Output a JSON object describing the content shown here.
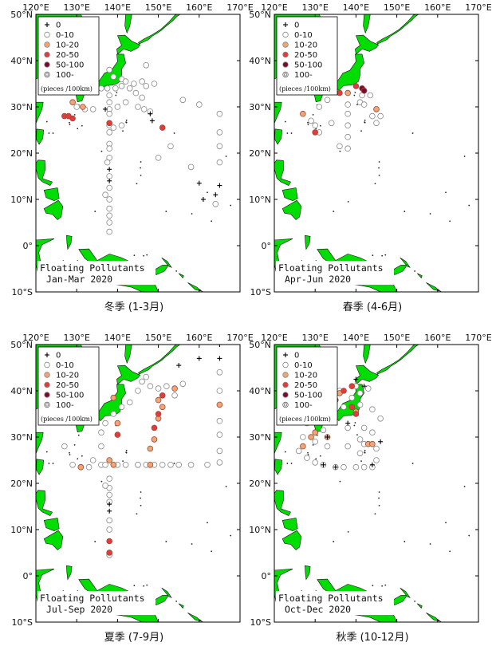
{
  "axes": {
    "lon_ticks": [
      {
        "value": 120,
        "label": "120°E"
      },
      {
        "value": 130,
        "label": "130°E"
      },
      {
        "value": 140,
        "label": "140°E"
      },
      {
        "value": 150,
        "label": "150°E"
      },
      {
        "value": 160,
        "label": "160°E"
      },
      {
        "value": 170,
        "label": "170°E"
      }
    ],
    "lat_ticks": [
      {
        "value": 50,
        "label": "50°N"
      },
      {
        "value": 40,
        "label": "40°N"
      },
      {
        "value": 30,
        "label": "30°N"
      },
      {
        "value": 20,
        "label": "20°N"
      },
      {
        "value": 10,
        "label": "10°N"
      },
      {
        "value": 0,
        "label": "0°"
      },
      {
        "value": -10,
        "label": "10°S"
      }
    ],
    "lon_range": [
      120,
      170
    ],
    "lat_range": [
      -10,
      50
    ]
  },
  "legend": {
    "items": [
      {
        "label": "0",
        "symbol": "plus"
      },
      {
        "label": "0-10",
        "color": "#ffffff"
      },
      {
        "label": "10-20",
        "color": "#f2a574"
      },
      {
        "label": "20-50",
        "color": "#e33b3b"
      },
      {
        "label": "50-100",
        "color": "#7a0a2e"
      },
      {
        "label": "100-",
        "symbol": "double"
      }
    ],
    "unit": "(pieces /100km)"
  },
  "colors": {
    "land": "#00dd00",
    "plus": "#000000"
  },
  "panels": [
    {
      "id": "winter",
      "title_line1": "Floating Pollutants",
      "title_line2": "Jan-Mar 2020",
      "caption": "冬季 (1-3月)",
      "points": [
        [
          138,
          38,
          1
        ],
        [
          139,
          36.5,
          1
        ],
        [
          141,
          36,
          1
        ],
        [
          142,
          35.5,
          1
        ],
        [
          144,
          35,
          1
        ],
        [
          146,
          35.5,
          1
        ],
        [
          147,
          34.5,
          1
        ],
        [
          149,
          35,
          1
        ],
        [
          147,
          39,
          1
        ],
        [
          132,
          33.5,
          1
        ],
        [
          134,
          34,
          1
        ],
        [
          136,
          34,
          1
        ],
        [
          137.5,
          34,
          1
        ],
        [
          139.5,
          34,
          1
        ],
        [
          141,
          34.5,
          1
        ],
        [
          143,
          34,
          1
        ],
        [
          144.5,
          33,
          1
        ],
        [
          146,
          32,
          1
        ],
        [
          138,
          32.5,
          1
        ],
        [
          138,
          31,
          1
        ],
        [
          138,
          29.5,
          1
        ],
        [
          138,
          28.5,
          1
        ],
        [
          138,
          26,
          1
        ],
        [
          138,
          24.5,
          1
        ],
        [
          138,
          22,
          1
        ],
        [
          138,
          21,
          1
        ],
        [
          138,
          19,
          1
        ],
        [
          137.5,
          18,
          1
        ],
        [
          138,
          15,
          1
        ],
        [
          138,
          12.5,
          1
        ],
        [
          138,
          10,
          1
        ],
        [
          138,
          8,
          1
        ],
        [
          138,
          6.5,
          1
        ],
        [
          138,
          5,
          1
        ],
        [
          138,
          3,
          1
        ],
        [
          137,
          11,
          1
        ],
        [
          130,
          30,
          1
        ],
        [
          132,
          29.5,
          1
        ],
        [
          134,
          29.5,
          1
        ],
        [
          140,
          30,
          1
        ],
        [
          142,
          31,
          1
        ],
        [
          145,
          30,
          1
        ],
        [
          146.5,
          29.5,
          1
        ],
        [
          148,
          29,
          1
        ],
        [
          141,
          26,
          1
        ],
        [
          139,
          25.5,
          1
        ],
        [
          150,
          19,
          1
        ],
        [
          153,
          21.5,
          1
        ],
        [
          156,
          31.5,
          1
        ],
        [
          158,
          17,
          1
        ],
        [
          160,
          30.5,
          1
        ],
        [
          165,
          28.5,
          1
        ],
        [
          165,
          24.5,
          1
        ],
        [
          165,
          21.5,
          1
        ],
        [
          165,
          18,
          1
        ],
        [
          164,
          9,
          1
        ],
        [
          129,
          31,
          2
        ],
        [
          127,
          28,
          3
        ],
        [
          129,
          27.5,
          3
        ],
        [
          128,
          28,
          3
        ],
        [
          138,
          26.5,
          3
        ],
        [
          151,
          25.5,
          3
        ],
        [
          131.5,
          30,
          2
        ],
        [
          137,
          29.5,
          0
        ],
        [
          148,
          28.5,
          0
        ],
        [
          138,
          16.5,
          0
        ],
        [
          138,
          14,
          0
        ],
        [
          160,
          13.5,
          0
        ],
        [
          161,
          10,
          0
        ],
        [
          164,
          11,
          0
        ],
        [
          165,
          13,
          0
        ],
        [
          148.5,
          27,
          0
        ]
      ]
    },
    {
      "id": "spring",
      "title_line1": "Floating Pollutants",
      "title_line2": "Apr-Jun 2020",
      "caption": "春季 (4-6月)",
      "points": [
        [
          127,
          28.5,
          2
        ],
        [
          131,
          30,
          1
        ],
        [
          130,
          26,
          1
        ],
        [
          129,
          27,
          1
        ],
        [
          133,
          31.5,
          1
        ],
        [
          138,
          30.5,
          1
        ],
        [
          138,
          28.5,
          1
        ],
        [
          138,
          26,
          1
        ],
        [
          138,
          23.5,
          1
        ],
        [
          138,
          21,
          1
        ],
        [
          136,
          21.5,
          1
        ],
        [
          141,
          31,
          1
        ],
        [
          143.5,
          32.5,
          1
        ],
        [
          141.5,
          32.5,
          1
        ],
        [
          142,
          30.5,
          1
        ],
        [
          145,
          26.5,
          1
        ],
        [
          146,
          28,
          1
        ],
        [
          144,
          28,
          1
        ],
        [
          131,
          24.5,
          1
        ],
        [
          134,
          26.5,
          1
        ],
        [
          130,
          24.5,
          3
        ],
        [
          138,
          33,
          2
        ],
        [
          145,
          29.5,
          2
        ],
        [
          136,
          33,
          3
        ],
        [
          140,
          34.5,
          3
        ],
        [
          141.5,
          34,
          4
        ],
        [
          142,
          33.5,
          4
        ]
      ]
    },
    {
      "id": "summer",
      "title_line1": "Floating Pollutants",
      "title_line2": "Jul-Sep 2020",
      "caption": "夏季 (7-9月)",
      "points": [
        [
          127,
          28,
          1
        ],
        [
          129,
          24,
          1
        ],
        [
          131,
          23.5,
          1
        ],
        [
          133,
          23.5,
          1
        ],
        [
          134,
          25,
          1
        ],
        [
          136,
          24,
          1
        ],
        [
          137,
          24,
          1
        ],
        [
          140,
          24,
          1
        ],
        [
          142,
          24,
          1
        ],
        [
          145,
          24,
          1
        ],
        [
          147,
          24,
          1
        ],
        [
          149,
          24,
          1
        ],
        [
          151,
          24,
          1
        ],
        [
          153,
          24,
          1
        ],
        [
          155,
          24,
          1
        ],
        [
          158,
          24,
          1
        ],
        [
          162,
          24,
          1
        ],
        [
          165,
          24.5,
          1
        ],
        [
          138,
          21,
          1
        ],
        [
          138,
          19,
          1
        ],
        [
          138,
          17.5,
          1
        ],
        [
          138,
          16,
          1
        ],
        [
          138,
          12,
          1
        ],
        [
          138,
          10,
          1
        ],
        [
          138,
          5,
          1
        ],
        [
          138,
          4.5,
          1
        ],
        [
          137,
          19.5,
          1
        ],
        [
          136,
          31,
          1
        ],
        [
          137,
          33,
          1
        ],
        [
          139,
          35,
          1
        ],
        [
          141,
          36.5,
          1
        ],
        [
          143,
          37.5,
          1
        ],
        [
          145,
          40,
          1
        ],
        [
          146,
          42,
          1
        ],
        [
          148,
          41,
          1
        ],
        [
          150,
          40.5,
          1
        ],
        [
          152,
          41,
          1
        ],
        [
          154,
          39,
          1
        ],
        [
          156,
          41.5,
          1
        ],
        [
          165,
          44,
          1
        ],
        [
          165,
          40,
          1
        ],
        [
          165,
          33.5,
          1
        ],
        [
          165,
          30.5,
          1
        ],
        [
          165,
          27,
          1
        ],
        [
          139,
          24,
          2
        ],
        [
          148,
          24,
          2
        ],
        [
          131,
          23.5,
          2
        ],
        [
          138,
          25,
          2
        ],
        [
          140,
          33,
          2
        ],
        [
          139,
          38.5,
          2
        ],
        [
          148,
          27.5,
          2
        ],
        [
          149,
          29.5,
          2
        ],
        [
          150,
          34,
          2
        ],
        [
          151,
          36.5,
          2
        ],
        [
          165,
          37,
          2
        ],
        [
          154,
          40.5,
          2
        ],
        [
          150,
          38,
          2
        ],
        [
          149,
          32,
          3
        ],
        [
          150,
          35,
          3
        ],
        [
          151,
          39,
          3
        ],
        [
          140,
          30.5,
          3
        ],
        [
          138,
          7.5,
          3
        ],
        [
          138,
          5,
          3
        ],
        [
          138,
          15.5,
          0
        ],
        [
          138,
          14,
          0
        ],
        [
          155,
          45.5,
          0
        ],
        [
          160,
          47,
          0
        ],
        [
          165,
          50,
          0
        ],
        [
          165,
          47,
          0
        ],
        [
          145,
          24,
          1
        ],
        [
          147,
          43,
          1
        ],
        [
          136,
          28,
          1
        ]
      ]
    },
    {
      "id": "autumn",
      "title_line1": "Floating Pollutants",
      "title_line2": "Oct-Dec 2020",
      "caption": "秋季 (10-12月)",
      "points": [
        [
          126,
          27,
          1
        ],
        [
          128,
          25.5,
          1
        ],
        [
          130,
          24.5,
          1
        ],
        [
          132,
          24,
          1
        ],
        [
          135,
          23.5,
          1
        ],
        [
          137,
          23.5,
          1
        ],
        [
          140,
          23.5,
          1
        ],
        [
          142,
          23.5,
          1
        ],
        [
          144,
          23.5,
          1
        ],
        [
          145,
          25,
          1
        ],
        [
          141,
          26.5,
          1
        ],
        [
          138,
          28,
          1
        ],
        [
          141,
          29.5,
          1
        ],
        [
          144,
          31,
          1
        ],
        [
          142,
          32,
          1
        ],
        [
          138,
          32,
          1
        ],
        [
          132,
          31.5,
          1
        ],
        [
          128,
          33,
          1
        ],
        [
          130,
          33.5,
          1
        ],
        [
          134,
          35,
          1
        ],
        [
          137,
          36.5,
          1
        ],
        [
          139,
          38.5,
          1
        ],
        [
          141,
          39.5,
          1
        ],
        [
          143,
          40.5,
          1
        ],
        [
          144,
          36,
          1
        ],
        [
          146,
          34,
          1
        ],
        [
          145,
          27.5,
          1
        ],
        [
          142,
          28.5,
          1
        ],
        [
          130,
          29,
          1
        ],
        [
          127,
          30,
          1
        ],
        [
          133,
          28,
          1
        ],
        [
          136,
          40,
          1
        ],
        [
          140,
          41,
          1
        ],
        [
          141,
          37,
          1
        ],
        [
          127,
          28,
          2
        ],
        [
          129,
          30,
          2
        ],
        [
          130,
          31,
          2
        ],
        [
          133,
          30,
          2
        ],
        [
          136,
          39.5,
          2
        ],
        [
          143,
          28.5,
          2
        ],
        [
          144,
          28.5,
          2
        ],
        [
          140,
          35.5,
          2
        ],
        [
          134,
          38,
          2
        ],
        [
          128,
          34,
          3
        ],
        [
          131,
          34.5,
          3
        ],
        [
          135,
          38,
          3
        ],
        [
          137,
          40,
          3
        ],
        [
          139,
          41,
          3
        ],
        [
          139,
          36.5,
          3
        ],
        [
          140,
          35,
          3
        ],
        [
          133,
          34,
          4
        ],
        [
          128,
          33.5,
          4
        ],
        [
          132,
          24,
          0
        ],
        [
          135,
          23.5,
          0
        ],
        [
          144,
          24,
          0
        ],
        [
          146,
          29,
          0
        ],
        [
          140,
          42.5,
          0
        ],
        [
          142,
          41,
          0
        ],
        [
          133,
          30,
          0
        ],
        [
          138,
          33,
          0
        ]
      ]
    }
  ]
}
